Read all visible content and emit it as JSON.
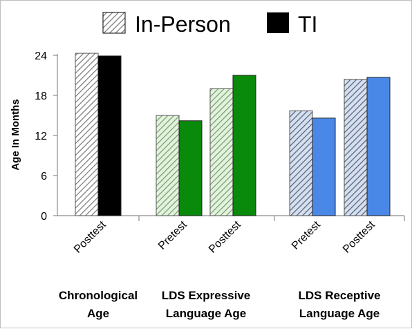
{
  "chart_data": {
    "type": "bar",
    "title": "",
    "ylabel": "Age In Months",
    "ylim": [
      0,
      24
    ],
    "yticks": [
      "0",
      "6",
      "12",
      "18",
      "24"
    ],
    "legend": [
      {
        "name": "In-Person",
        "pattern": "hatched"
      },
      {
        "name": "TI",
        "pattern": "solid"
      }
    ],
    "legend_position": "top",
    "grid": false,
    "categories": [
      {
        "group": "Chronological Age",
        "group_lines": [
          "Chronological",
          "Age"
        ],
        "label": "Posttest",
        "in_person": 24.3,
        "ti": 23.9,
        "color": "#000000",
        "light_color": "#ffffff"
      },
      {
        "group": "LDS Expressive Language Age",
        "group_lines": [
          "LDS Expressive",
          "Language Age"
        ],
        "label": "Pretest",
        "in_person": 15.0,
        "ti": 14.2,
        "color": "#0a8a0a",
        "light_color": "#d8ecd3"
      },
      {
        "group": "LDS Expressive Language Age",
        "group_lines": [
          "LDS Expressive",
          "Language Age"
        ],
        "label": "Posttest",
        "in_person": 19.0,
        "ti": 21.0,
        "color": "#0a8a0a",
        "light_color": "#d8ecd3"
      },
      {
        "group": "LDS Receptive Language Age",
        "group_lines": [
          "LDS Receptive",
          "Language Age"
        ],
        "label": "Pretest",
        "in_person": 15.7,
        "ti": 14.6,
        "color": "#4a88e8",
        "light_color": "#c7d2e6"
      },
      {
        "group": "LDS Receptive Language Age",
        "group_lines": [
          "LDS Receptive",
          "Language Age"
        ],
        "label": "Posttest",
        "in_person": 20.4,
        "ti": 20.7,
        "color": "#4a88e8",
        "light_color": "#c7d2e6"
      }
    ],
    "groups": [
      {
        "lines": [
          "Chronological",
          "Age"
        ]
      },
      {
        "lines": [
          "LDS Expressive",
          "Language Age"
        ]
      },
      {
        "lines": [
          "LDS Receptive",
          "Language Age"
        ]
      }
    ]
  }
}
